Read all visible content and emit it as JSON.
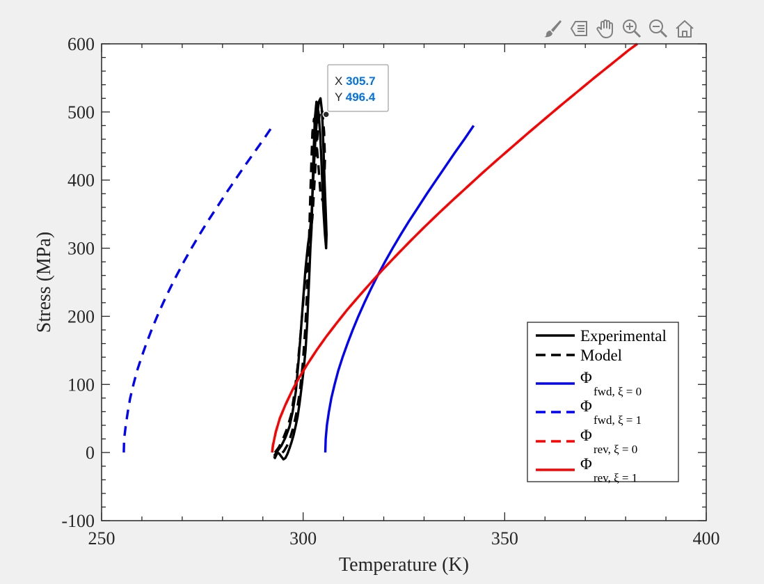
{
  "toolbar": {
    "buttons": [
      {
        "name": "brush-icon"
      },
      {
        "name": "data-tips-icon"
      },
      {
        "name": "pan-hand-icon"
      },
      {
        "name": "zoom-in-icon"
      },
      {
        "name": "zoom-out-icon"
      },
      {
        "name": "home-icon"
      }
    ],
    "icon_color": "#808080"
  },
  "datatip": {
    "x_label": "X",
    "x_value": "305.7",
    "y_label": "Y",
    "y_value": "496.4",
    "point": [
      305.7,
      496.4
    ],
    "value_color": "#0072e6"
  },
  "chart_data": {
    "type": "line",
    "title": "",
    "xlabel": "Temperature (K)",
    "ylabel": "Stress (MPa)",
    "xlim": [
      250,
      400
    ],
    "ylim": [
      -100,
      600
    ],
    "xticks": [
      250,
      300,
      350,
      400
    ],
    "yticks": [
      -100,
      0,
      100,
      200,
      300,
      400,
      500,
      600
    ],
    "xtick_labels": [
      "250",
      "300",
      "350",
      "400"
    ],
    "ytick_labels": [
      "-100",
      "0",
      "100",
      "200",
      "300",
      "400",
      "500",
      "600"
    ],
    "grid": false,
    "legend_position": "lower-right",
    "series": [
      {
        "name": "Experimental",
        "color": "#000000",
        "dash": "solid",
        "legend": {
          "main": "Experimental",
          "sub": ""
        },
        "x": [
          292.8,
          293.6,
          294.6,
          295.6,
          296.6,
          297.4,
          298.2,
          298.8,
          299.4,
          300.0,
          300.6,
          301.2,
          301.7,
          302.1,
          302.5,
          303.0,
          303.5,
          303.9,
          304.3,
          304.7,
          305.0,
          305.3,
          305.6,
          305.8,
          305.7,
          305.4,
          305.0,
          304.6,
          304.2,
          303.8,
          303.3,
          302.9,
          302.6,
          302.3,
          302.1,
          301.8,
          301.6,
          301.3,
          301.0,
          300.6,
          300.1,
          299.6,
          299.1,
          298.6,
          298.1,
          297.6,
          297.1,
          296.6,
          296.1,
          295.6,
          295.1,
          294.6,
          294.1,
          293.7,
          293.3,
          293.0,
          292.8
        ],
        "y": [
          -5,
          2,
          10,
          22,
          38,
          60,
          90,
          130,
          175,
          225,
          270,
          305,
          325,
          350,
          400,
          455,
          495,
          515,
          520,
          500,
          455,
          400,
          355,
          320,
          300,
          320,
          360,
          420,
          470,
          500,
          515,
          490,
          440,
          380,
          330,
          300,
          270,
          230,
          190,
          150,
          120,
          95,
          72,
          52,
          38,
          25,
          15,
          6,
          -2,
          -8,
          -10,
          -6,
          -2,
          0,
          -4,
          -8,
          -5
        ]
      },
      {
        "name": "Model",
        "color": "#000000",
        "dash": "dashed",
        "legend": {
          "main": "Model",
          "sub": ""
        },
        "x": [
          293.0,
          294.0,
          295.0,
          296.0,
          297.0,
          297.8,
          298.6,
          299.3,
          300.0,
          300.7,
          301.3,
          301.8,
          302.3,
          302.8,
          303.3,
          303.8,
          304.3,
          304.8,
          305.2,
          305.4,
          305.2,
          304.8,
          304.3,
          303.8,
          303.2,
          302.7,
          302.3,
          302.0,
          301.7,
          301.4,
          301.0,
          300.5,
          299.9,
          299.2,
          298.4,
          297.6,
          296.8,
          296.0,
          295.2,
          294.4,
          293.6,
          293.0
        ],
        "y": [
          0,
          8,
          20,
          35,
          55,
          85,
          125,
          170,
          220,
          265,
          300,
          320,
          345,
          395,
          445,
          485,
          505,
          500,
          470,
          430,
          390,
          370,
          380,
          420,
          465,
          490,
          470,
          420,
          360,
          300,
          240,
          180,
          130,
          90,
          60,
          38,
          22,
          10,
          2,
          -3,
          -2,
          0
        ]
      },
      {
        "name": "fwd, xi = 0",
        "color": "#0000ff",
        "dash": "solid",
        "legend": {
          "main": "Φ",
          "sub": "fwd, ξ = 0"
        },
        "x": [
          305.5,
          305.6,
          305.9,
          306.4,
          307.0,
          307.8,
          308.7,
          309.8,
          311.0,
          312.3,
          313.7,
          315.2,
          316.8,
          318.5,
          320.3,
          322.2,
          324.2,
          326.3,
          328.5,
          330.7,
          333.0,
          335.3,
          337.6,
          340.0,
          342.3
        ],
        "y": [
          0,
          20,
          40,
          60,
          80,
          100,
          120,
          140,
          160,
          180,
          200,
          220,
          240,
          260,
          280,
          300,
          320,
          340,
          360,
          380,
          400,
          420,
          440,
          460,
          480
        ]
      },
      {
        "name": "fwd, xi = 1",
        "color": "#0000ff",
        "dash": "dashed",
        "legend": {
          "main": "Φ",
          "sub": "fwd, ξ = 1"
        },
        "x": [
          255.5,
          255.6,
          256.0,
          256.5,
          257.1,
          257.9,
          258.8,
          259.9,
          261.1,
          262.4,
          263.8,
          265.3,
          266.9,
          268.6,
          270.4,
          272.3,
          274.3,
          276.4,
          278.6,
          280.8,
          283.1,
          285.4,
          287.8,
          290.2,
          292.5
        ],
        "y": [
          0,
          20,
          40,
          60,
          80,
          100,
          120,
          140,
          160,
          180,
          200,
          220,
          240,
          260,
          280,
          300,
          320,
          340,
          360,
          380,
          400,
          420,
          440,
          460,
          480
        ]
      },
      {
        "name": "rev, xi = 0",
        "color": "#ff0000",
        "dash": "dashed",
        "legend": {
          "main": "Φ",
          "sub": "rev, ξ = 0"
        },
        "x": [
          292.3,
          292.5,
          293.2,
          294.2,
          295.6,
          297.2,
          299.0,
          301.1,
          303.3,
          305.7,
          308.3,
          311.0,
          313.9,
          316.9,
          320.0,
          323.2,
          326.5,
          329.9,
          333.4,
          337.0,
          340.7,
          344.4,
          348.2,
          352.1,
          356.0,
          360.0,
          364.0,
          368.1,
          372.2,
          376.4,
          380.6,
          382.9
        ],
        "y": [
          0,
          10,
          30,
          50,
          70,
          90,
          110,
          130,
          150,
          170,
          190,
          210,
          230,
          250,
          270,
          290,
          310,
          330,
          350,
          370,
          390,
          410,
          430,
          450,
          470,
          490,
          510,
          530,
          550,
          570,
          590,
          600
        ]
      },
      {
        "name": "rev, xi = 1",
        "color": "#ff0000",
        "dash": "solid",
        "legend": {
          "main": "Φ",
          "sub": "rev, ξ = 1"
        },
        "x": [
          292.3,
          292.5,
          293.2,
          294.2,
          295.6,
          297.2,
          299.0,
          301.1,
          303.3,
          305.7,
          308.3,
          311.0,
          313.9,
          316.9,
          320.0,
          323.2,
          326.5,
          329.9,
          333.4,
          337.0,
          340.7,
          344.4,
          348.2,
          352.1,
          356.0,
          360.0,
          364.0,
          368.1,
          372.2,
          376.4,
          380.6,
          382.9
        ],
        "y": [
          0,
          10,
          30,
          50,
          70,
          90,
          110,
          130,
          150,
          170,
          190,
          210,
          230,
          250,
          270,
          290,
          310,
          330,
          350,
          370,
          390,
          410,
          430,
          450,
          470,
          490,
          510,
          530,
          550,
          570,
          590,
          600
        ]
      }
    ]
  }
}
